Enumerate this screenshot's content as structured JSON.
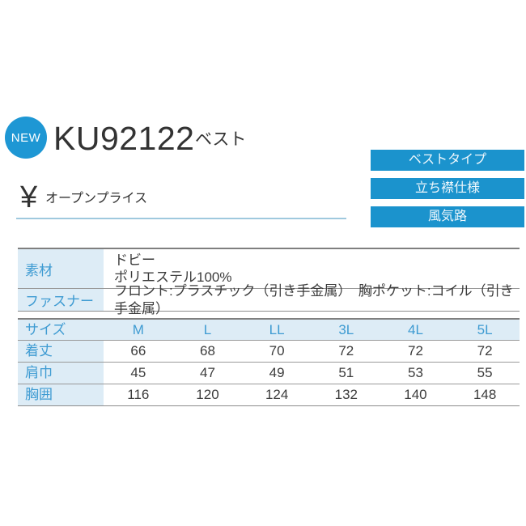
{
  "product": {
    "badge": "NEW",
    "code": "KU92122",
    "category": "ベスト",
    "currency_symbol": "¥",
    "price": "オープンプライス"
  },
  "tags": [
    {
      "label": "ベストタイプ"
    },
    {
      "label": "立ち襟仕様"
    },
    {
      "label": "風気路"
    }
  ],
  "spec_table": {
    "rows": [
      {
        "label": "素材",
        "value_lines": [
          "ドビー",
          "ポリエステル100%"
        ]
      },
      {
        "label": "ファスナー",
        "value_lines": [
          "フロント:プラスチック（引き手金属）　胸ポケット:コイル（引き手金属）"
        ]
      }
    ]
  },
  "size_table": {
    "header_label": "サイズ",
    "sizes": [
      "M",
      "L",
      "LL",
      "3L",
      "4L",
      "5L"
    ],
    "rows": [
      {
        "label": "着丈",
        "values": [
          "66",
          "68",
          "70",
          "72",
          "72",
          "72"
        ]
      },
      {
        "label": "肩巾",
        "values": [
          "45",
          "47",
          "49",
          "51",
          "53",
          "55"
        ]
      },
      {
        "label": "胸囲",
        "values": [
          "116",
          "120",
          "124",
          "132",
          "140",
          "148"
        ]
      }
    ]
  },
  "colors": {
    "accent_blue": "#1b93cd",
    "badge_blue": "#1e97d4",
    "light_blue_bg": "#ddecf6",
    "blue_text": "#3e9bd2",
    "underline_blue": "#9fc9de",
    "dark_text": "#3c3c3c",
    "line_gray": "#8c8c8c"
  }
}
